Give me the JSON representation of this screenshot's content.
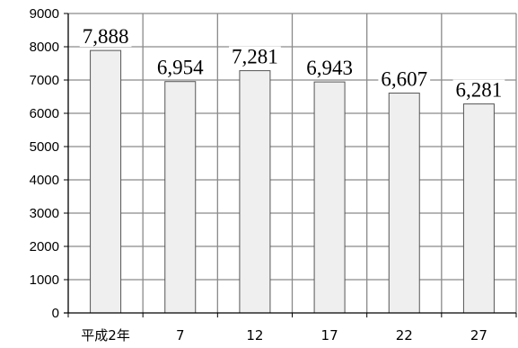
{
  "chart_data": {
    "type": "bar",
    "categories": [
      "平成2年",
      "7",
      "12",
      "17",
      "22",
      "27"
    ],
    "values": [
      7888,
      6954,
      7281,
      6943,
      6607,
      6281
    ],
    "data_labels": [
      "7,888",
      "6,954",
      "7,281",
      "6,943",
      "6,607",
      "6,281"
    ],
    "title": "",
    "xlabel": "",
    "ylabel": "",
    "ylim": [
      0,
      9000
    ],
    "yticks": [
      0,
      1000,
      2000,
      3000,
      4000,
      5000,
      6000,
      7000,
      8000,
      9000
    ],
    "ytick_labels": [
      "0",
      "1000",
      "2000",
      "3000",
      "4000",
      "5000",
      "6000",
      "7000",
      "8000",
      "9000"
    ],
    "grid": true,
    "legend": "none",
    "colors": {
      "bar_fill": "#efefef",
      "bar_stroke": "#555555",
      "grid": "#8a8a8a",
      "axis": "#000000"
    }
  }
}
